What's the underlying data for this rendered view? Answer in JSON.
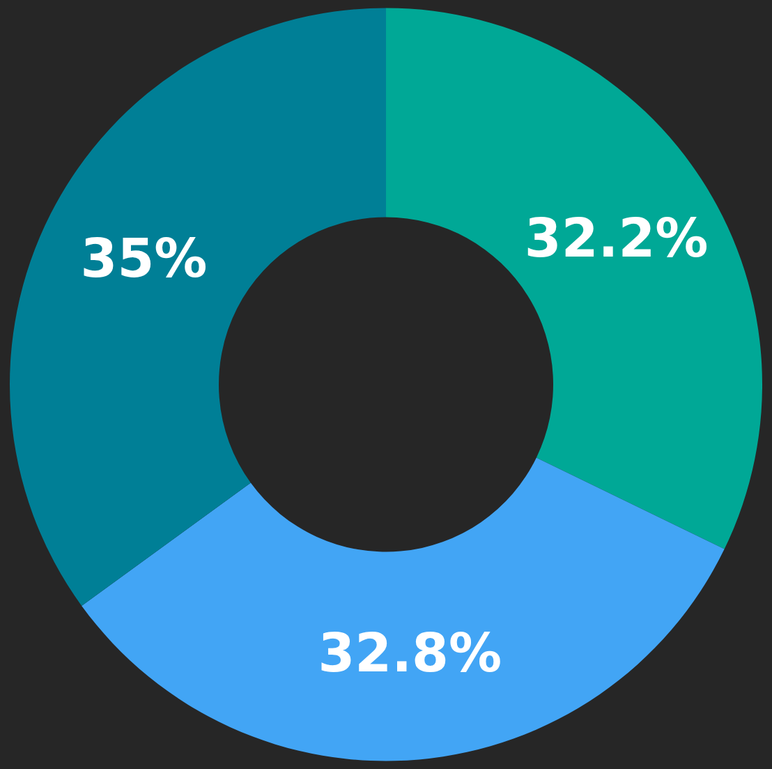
{
  "chart_data": {
    "type": "donut",
    "categories": [
      null,
      null,
      null
    ],
    "values": [
      32.2,
      32.8,
      35
    ],
    "colors": [
      "#00a896",
      "#42a5f5",
      "#007f96"
    ],
    "value_labels": [
      "32.2%",
      "32.8%",
      "35%"
    ],
    "legend": false
  }
}
